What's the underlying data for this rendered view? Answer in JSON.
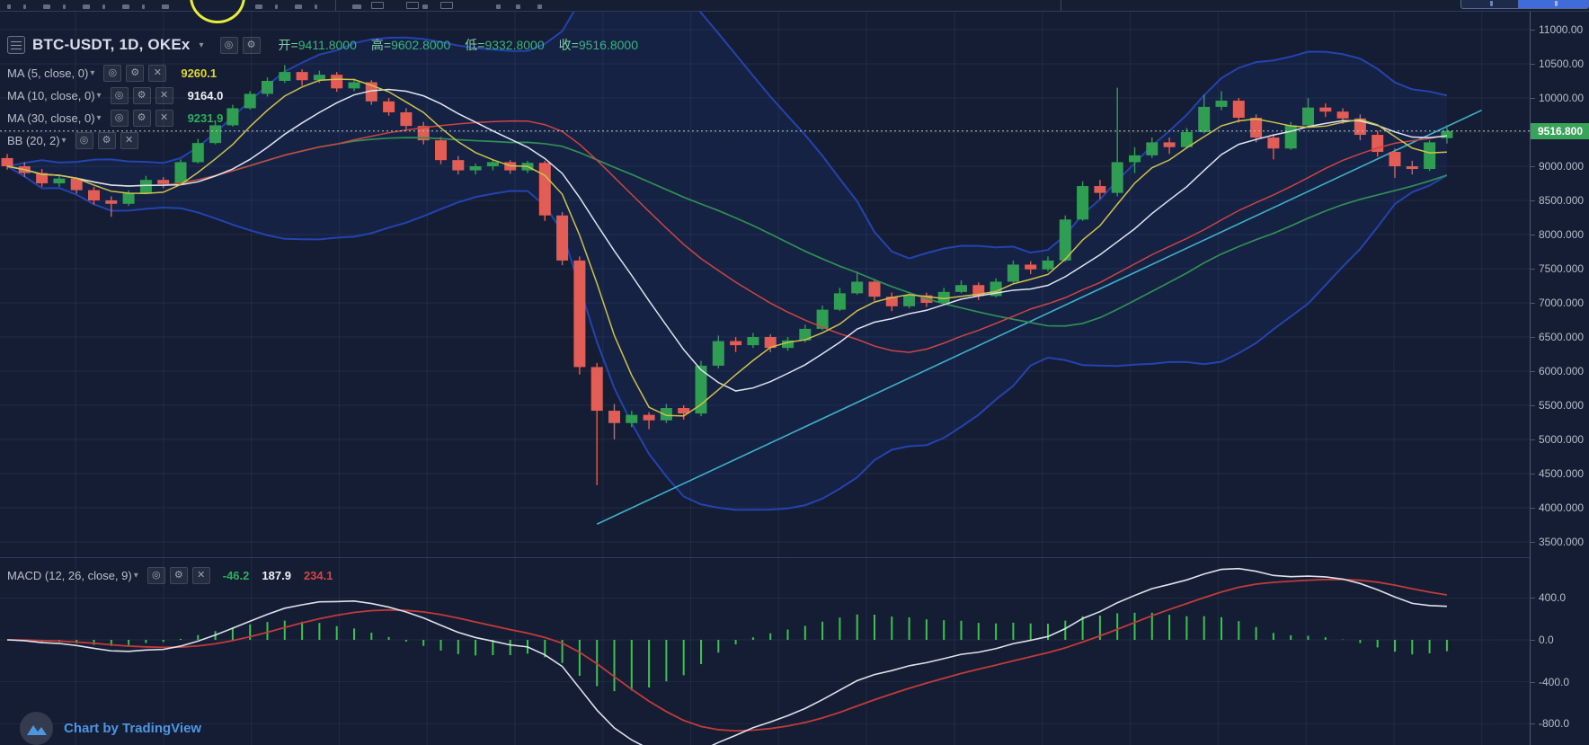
{
  "header": {
    "symbol_title": "BTC-USDT, 1D, OKEx",
    "caret": "▾",
    "ohlc": [
      {
        "label": "开=",
        "value": "9411.8000"
      },
      {
        "label": "高=",
        "value": "9602.8000"
      },
      {
        "label": "低=",
        "value": "9332.8000"
      },
      {
        "label": "收=",
        "value": "9516.8000"
      }
    ]
  },
  "icons": {
    "eye": "◎",
    "gear": "⚙",
    "close": "✕"
  },
  "indicators": [
    {
      "name": "MA (5, close, 0)",
      "value": "9260.1"
    },
    {
      "name": "MA (10, close, 0)",
      "value": "9164.0"
    },
    {
      "name": "MA (30, close, 0)",
      "value": "9231.9"
    },
    {
      "name": "BB (20, 2)",
      "value": ""
    }
  ],
  "macd_legend": {
    "name": "MACD (12, 26, close, 9)",
    "histogram_value": "-46.2",
    "macd_value": "187.9",
    "signal_value": "234.1"
  },
  "price_axis": {
    "labels": [
      {
        "text": "11000.00",
        "price": 11000
      },
      {
        "text": "10500.00",
        "price": 10500
      },
      {
        "text": "10000.00",
        "price": 10000
      },
      {
        "text": "9000.000",
        "price": 9000
      },
      {
        "text": "8500.000",
        "price": 8500
      },
      {
        "text": "8000.000",
        "price": 8000
      },
      {
        "text": "7500.000",
        "price": 7500
      },
      {
        "text": "7000.000",
        "price": 7000
      },
      {
        "text": "6500.000",
        "price": 6500
      },
      {
        "text": "6000.000",
        "price": 6000
      },
      {
        "text": "5500.000",
        "price": 5500
      },
      {
        "text": "5000.000",
        "price": 5000
      },
      {
        "text": "4500.000",
        "price": 4500
      },
      {
        "text": "4000.000",
        "price": 4000
      },
      {
        "text": "3500.000",
        "price": 3500
      }
    ],
    "last_price_tag": {
      "text": "9516.800",
      "price": 9516.8
    }
  },
  "macd_axis": {
    "labels": [
      {
        "text": "400.0",
        "value": 400
      },
      {
        "text": "0.0",
        "value": 0
      },
      {
        "text": "-400.0",
        "value": -400
      },
      {
        "text": "-800.0",
        "value": -800
      }
    ]
  },
  "attribution": "Chart by TradingView",
  "colors": {
    "background": "#141d33",
    "candle_up": "#2f9e52",
    "candle_down": "#e25d55",
    "ma5": "#cfc14a",
    "ma10": "#dfe4f0",
    "ma30": "#2f9055",
    "bb_band": "#2443ae",
    "bb_fill": "rgba(36,67,174,0.13)",
    "bb_basis": "#cc4444",
    "trendline": "#3eb0c8",
    "price_line": "#b5c9bd",
    "price_tag_bg": "#3aa35a",
    "macd_line": "#dde1ec",
    "signal_line": "#c23b3b",
    "histogram": "#3cc24f",
    "tv_blue": "#4e96e2",
    "highlight_yellow": "#e6ed3a",
    "grid": "rgba(140,165,205,0.10)"
  },
  "chart_data": {
    "type": "candlestick",
    "title": "BTC-USDT, 1D, OKEx",
    "symbol": "BTC-USDT",
    "interval": "1D",
    "exchange": "OKEx",
    "current_ohlc": {
      "open": 9411.8,
      "high": 9602.8,
      "low": 9332.8,
      "close": 9516.8
    },
    "price_axis_visible_range": [
      3500,
      11000
    ],
    "macd_axis_visible_range": [
      -800,
      400
    ],
    "overlays": [
      "MA(5)",
      "MA(10)",
      "MA(30)",
      "BB(20,2)",
      "trendline"
    ],
    "lower_indicator": "MACD(12,26,close,9)",
    "macd_current": {
      "histogram": -46.2,
      "macd": 187.9,
      "signal": 234.1
    },
    "trendline": {
      "start_index": 34,
      "start_price": 3760,
      "end_index": 85,
      "end_price": 9820
    },
    "candles": [
      [
        9120,
        9180,
        8950,
        9000
      ],
      [
        9000,
        9060,
        8840,
        8900
      ],
      [
        8900,
        8960,
        8700,
        8750
      ],
      [
        8750,
        8860,
        8700,
        8820
      ],
      [
        8820,
        8840,
        8600,
        8650
      ],
      [
        8650,
        8700,
        8440,
        8500
      ],
      [
        8500,
        8560,
        8260,
        8450
      ],
      [
        8450,
        8650,
        8420,
        8610
      ],
      [
        8610,
        8860,
        8590,
        8800
      ],
      [
        8800,
        8840,
        8680,
        8740
      ],
      [
        8740,
        9100,
        8720,
        9060
      ],
      [
        9060,
        9400,
        9040,
        9340
      ],
      [
        9340,
        9650,
        9320,
        9600
      ],
      [
        9600,
        9900,
        9580,
        9850
      ],
      [
        9850,
        10100,
        9830,
        10060
      ],
      [
        10060,
        10300,
        10020,
        10250
      ],
      [
        10250,
        10480,
        10220,
        10380
      ],
      [
        10380,
        10420,
        10180,
        10260
      ],
      [
        10260,
        10400,
        10220,
        10340
      ],
      [
        10340,
        10380,
        10090,
        10140
      ],
      [
        10140,
        10280,
        10100,
        10230
      ],
      [
        10230,
        10260,
        9900,
        9950
      ],
      [
        9950,
        10000,
        9740,
        9790
      ],
      [
        9790,
        9850,
        9540,
        9590
      ],
      [
        9590,
        9650,
        9320,
        9380
      ],
      [
        9380,
        9430,
        9030,
        9090
      ],
      [
        9090,
        9150,
        8880,
        8940
      ],
      [
        8940,
        9040,
        8880,
        9000
      ],
      [
        9000,
        9100,
        8940,
        9060
      ],
      [
        9060,
        9090,
        8890,
        8940
      ],
      [
        8940,
        9080,
        8900,
        9050
      ],
      [
        9050,
        9080,
        8200,
        8280
      ],
      [
        8280,
        8330,
        7550,
        7620
      ],
      [
        7620,
        7680,
        5950,
        6060
      ],
      [
        6060,
        6120,
        4330,
        5420
      ],
      [
        5420,
        5520,
        5000,
        5240
      ],
      [
        5240,
        5420,
        5180,
        5360
      ],
      [
        5360,
        5400,
        5150,
        5280
      ],
      [
        5280,
        5520,
        5240,
        5460
      ],
      [
        5460,
        5500,
        5290,
        5380
      ],
      [
        5380,
        6150,
        5340,
        6080
      ],
      [
        6080,
        6520,
        6040,
        6440
      ],
      [
        6440,
        6500,
        6280,
        6380
      ],
      [
        6380,
        6560,
        6340,
        6500
      ],
      [
        6500,
        6540,
        6280,
        6340
      ],
      [
        6340,
        6500,
        6300,
        6450
      ],
      [
        6450,
        6680,
        6420,
        6620
      ],
      [
        6620,
        6960,
        6600,
        6900
      ],
      [
        6900,
        7220,
        6880,
        7140
      ],
      [
        7140,
        7460,
        7120,
        7310
      ],
      [
        7310,
        7350,
        7030,
        7090
      ],
      [
        7090,
        7150,
        6880,
        6950
      ],
      [
        6950,
        7160,
        6920,
        7110
      ],
      [
        7110,
        7150,
        6940,
        7000
      ],
      [
        7000,
        7220,
        6980,
        7160
      ],
      [
        7160,
        7330,
        7140,
        7260
      ],
      [
        7260,
        7300,
        7040,
        7100
      ],
      [
        7100,
        7360,
        7080,
        7310
      ],
      [
        7310,
        7620,
        7290,
        7560
      ],
      [
        7560,
        7610,
        7420,
        7490
      ],
      [
        7490,
        7680,
        7460,
        7620
      ],
      [
        7620,
        8280,
        7600,
        8220
      ],
      [
        8220,
        8780,
        8200,
        8710
      ],
      [
        8710,
        8800,
        8520,
        8610
      ],
      [
        8610,
        10150,
        8560,
        9060
      ],
      [
        9060,
        9280,
        8900,
        9160
      ],
      [
        9160,
        9420,
        9120,
        9350
      ],
      [
        9350,
        9420,
        9180,
        9280
      ],
      [
        9280,
        9560,
        9260,
        9500
      ],
      [
        9500,
        10050,
        9480,
        9870
      ],
      [
        9870,
        10100,
        9820,
        9960
      ],
      [
        9960,
        10000,
        9640,
        9710
      ],
      [
        9710,
        9760,
        9350,
        9420
      ],
      [
        9420,
        9470,
        9100,
        9260
      ],
      [
        9260,
        9650,
        9240,
        9600
      ],
      [
        9600,
        10000,
        9580,
        9860
      ],
      [
        9860,
        9920,
        9720,
        9800
      ],
      [
        9800,
        9850,
        9620,
        9700
      ],
      [
        9700,
        9760,
        9380,
        9460
      ],
      [
        9460,
        9520,
        9140,
        9210
      ],
      [
        9210,
        9260,
        8830,
        9000
      ],
      [
        9000,
        9080,
        8880,
        8960
      ],
      [
        8960,
        9380,
        8930,
        9350
      ],
      [
        9411.8,
        9602.8,
        9332.8,
        9516.8
      ]
    ]
  }
}
